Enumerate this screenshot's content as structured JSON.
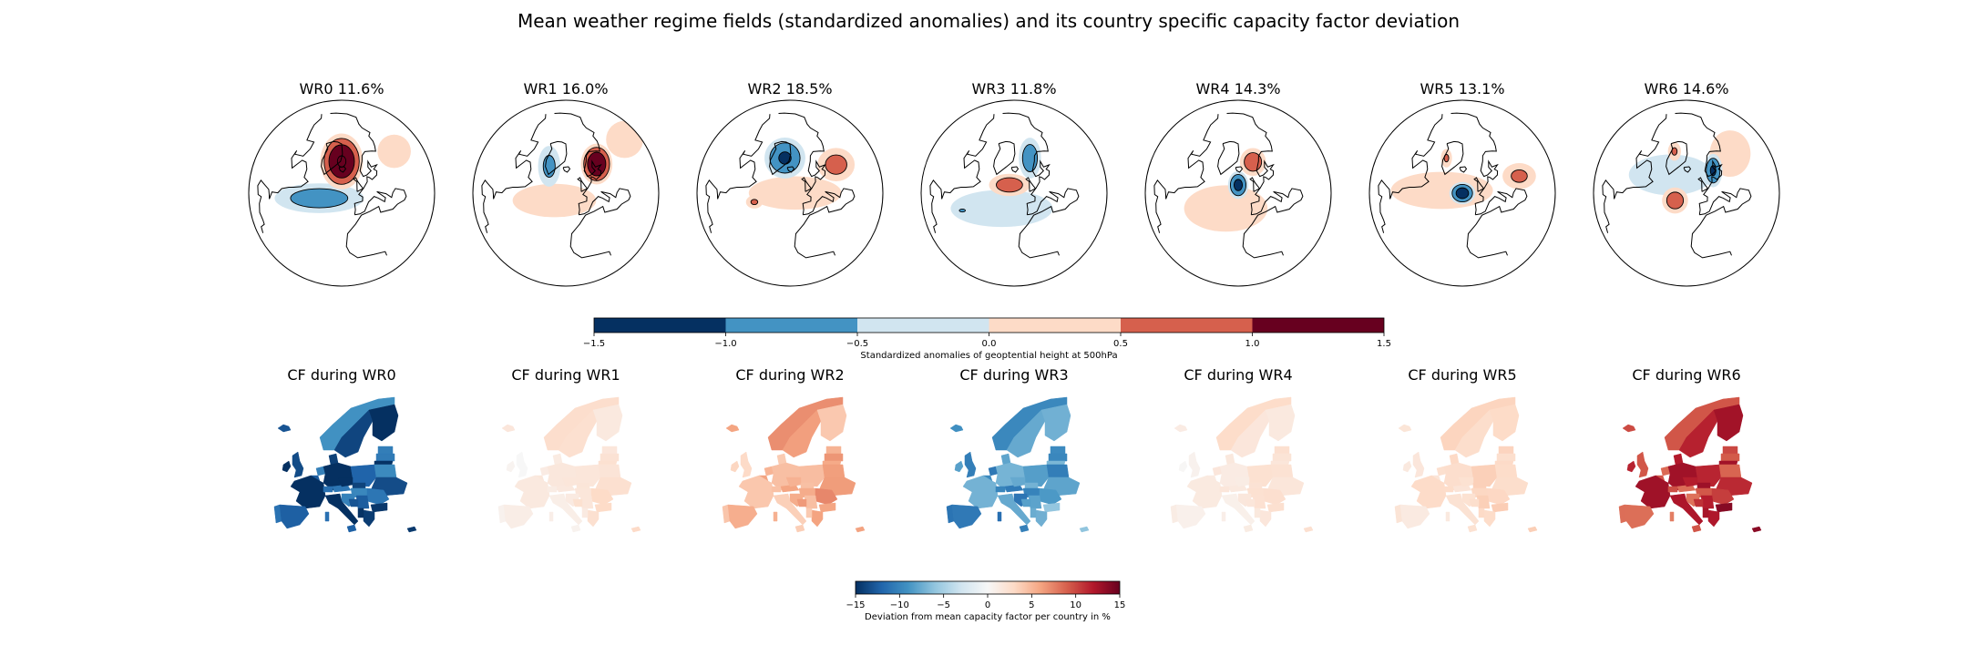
{
  "figure": {
    "title": "Mean weather regime fields (standardized anomalies) and its country specific capacity factor deviation"
  },
  "chart_data": [
    {
      "type": "heatmap",
      "name": "Mean weather regime fields",
      "projection": "orthographic north-polar",
      "panels": [
        {
          "title": "WR0 11.6%",
          "regime": "WR0",
          "frequency_pct": 11.6,
          "blobs": [
            {
              "lon": -20,
              "lat": 70,
              "value": 1.55,
              "sx": 0.23,
              "sy": 0.3
            },
            {
              "lon": -40,
              "lat": 45,
              "value": -0.85,
              "sx": 0.48,
              "sy": 0.16
            },
            {
              "lon": 60,
              "lat": 55,
              "value": 0.25,
              "sx": 0.18,
              "sy": 0.18
            }
          ]
        },
        {
          "title": "WR1 16.0%",
          "regime": "WR1",
          "frequency_pct": 16.0,
          "blobs": [
            {
              "lon": 25,
              "lat": 62,
              "value": 1.5,
              "sx": 0.17,
              "sy": 0.22
            },
            {
              "lon": -45,
              "lat": 65,
              "value": -0.7,
              "sx": 0.12,
              "sy": 0.22
            },
            {
              "lon": -30,
              "lat": 45,
              "value": 0.3,
              "sx": 0.45,
              "sy": 0.18
            },
            {
              "lon": 80,
              "lat": 50,
              "value": 0.3,
              "sx": 0.2,
              "sy": 0.2
            }
          ]
        },
        {
          "title": "WR2 18.5%",
          "regime": "WR2",
          "frequency_pct": 18.5,
          "blobs": [
            {
              "lon": -30,
              "lat": 72,
              "value": -1.1,
              "sx": 0.22,
              "sy": 0.22
            },
            {
              "lon": 40,
              "lat": 55,
              "value": 0.75,
              "sx": 0.2,
              "sy": 0.18
            },
            {
              "lon": -50,
              "lat": 40,
              "value": 0.6,
              "sx": 0.09,
              "sy": 0.07
            },
            {
              "lon": -15,
              "lat": 50,
              "value": 0.3,
              "sx": 0.5,
              "sy": 0.18
            }
          ]
        },
        {
          "title": "WR3 11.8%",
          "regime": "WR3",
          "frequency_pct": 11.8,
          "blobs": [
            {
              "lon": -25,
              "lat": 55,
              "value": 0.85,
              "sx": 0.22,
              "sy": 0.12
            },
            {
              "lon": 10,
              "lat": 70,
              "value": -0.9,
              "sx": 0.12,
              "sy": 0.22
            },
            {
              "lon": -30,
              "lat": 40,
              "value": -0.3,
              "sx": 0.55,
              "sy": 0.2
            },
            {
              "lon": -60,
              "lat": 30,
              "value": -0.6,
              "sx": 0.08,
              "sy": 0.04
            }
          ]
        },
        {
          "title": "WR4 14.3%",
          "regime": "WR4",
          "frequency_pct": 14.3,
          "blobs": [
            {
              "lon": 5,
              "lat": 68,
              "value": 0.9,
              "sx": 0.14,
              "sy": 0.15
            },
            {
              "lon": -20,
              "lat": 55,
              "value": -1.2,
              "sx": 0.11,
              "sy": 0.15
            },
            {
              "lon": -30,
              "lat": 40,
              "value": 0.3,
              "sx": 0.45,
              "sy": 0.25
            }
          ]
        },
        {
          "title": "WR5 13.1%",
          "regime": "WR5",
          "frequency_pct": 13.1,
          "blobs": [
            {
              "lon": -20,
              "lat": 50,
              "value": -1.3,
              "sx": 0.14,
              "sy": 0.12
            },
            {
              "lon": -50,
              "lat": 70,
              "value": 0.6,
              "sx": 0.06,
              "sy": 0.1
            },
            {
              "lon": 40,
              "lat": 45,
              "value": 0.65,
              "sx": 0.18,
              "sy": 0.14
            },
            {
              "lon": -40,
              "lat": 50,
              "value": 0.3,
              "sx": 0.55,
              "sy": 0.2
            }
          ]
        },
        {
          "title": "WR6 14.6%",
          "regime": "WR6",
          "frequency_pct": 14.6,
          "blobs": [
            {
              "lon": -30,
              "lat": 45,
              "value": 0.85,
              "sx": 0.14,
              "sy": 0.14
            },
            {
              "lon": 15,
              "lat": 60,
              "value": -1.1,
              "sx": 0.1,
              "sy": 0.18
            },
            {
              "lon": -40,
              "lat": 60,
              "value": -0.3,
              "sx": 0.45,
              "sy": 0.22
            },
            {
              "lon": -50,
              "lat": 75,
              "value": 0.6,
              "sx": 0.07,
              "sy": 0.1
            },
            {
              "lon": 50,
              "lat": 60,
              "value": 0.3,
              "sx": 0.22,
              "sy": 0.25
            }
          ]
        }
      ],
      "colorbar": {
        "label": "Standardized anomalies of geoptential height at 500hPa",
        "min": -1.5,
        "max": 1.5,
        "levels": [
          -1.5,
          -1.0,
          -0.5,
          0.0,
          0.5,
          1.0,
          1.5
        ],
        "tick_labels": [
          "−1.5",
          "−1.0",
          "−0.5",
          "0.0",
          "0.5",
          "1.0",
          "1.5"
        ],
        "colors": [
          "#053061",
          "#4393c3",
          "#d1e5f0",
          "#fddbc7",
          "#d6604d",
          "#67001f"
        ]
      }
    },
    {
      "type": "heatmap",
      "name": "Country capacity factor deviation",
      "panels": [
        {
          "title": "CF during WR0",
          "regime": "WR0",
          "level": -13
        },
        {
          "title": "CF during WR1",
          "regime": "WR1",
          "level": 1.5
        },
        {
          "title": "CF during WR2",
          "regime": "WR2",
          "level": 5
        },
        {
          "title": "CF during WR3",
          "regime": "WR3",
          "level": -9
        },
        {
          "title": "CF during WR4",
          "regime": "WR4",
          "level": 1.5
        },
        {
          "title": "CF during WR5",
          "regime": "WR5",
          "level": 2.5
        },
        {
          "title": "CF during WR6",
          "regime": "WR6",
          "level": 10.5
        }
      ],
      "colorbar": {
        "label": "Deviation from mean capacity factor per country in %",
        "min": -15,
        "max": 15,
        "ticks": [
          -15,
          -10,
          -5,
          0,
          5,
          10,
          15
        ],
        "tick_labels": [
          "−15",
          "−10",
          "−5",
          "0",
          "5",
          "10",
          "15"
        ],
        "colormap": [
          "#053061",
          "#2166ac",
          "#4393c3",
          "#92c5de",
          "#d1e5f0",
          "#f7f7f7",
          "#fddbc7",
          "#f4a582",
          "#d6604d",
          "#b2182b",
          "#67001f"
        ]
      }
    }
  ]
}
